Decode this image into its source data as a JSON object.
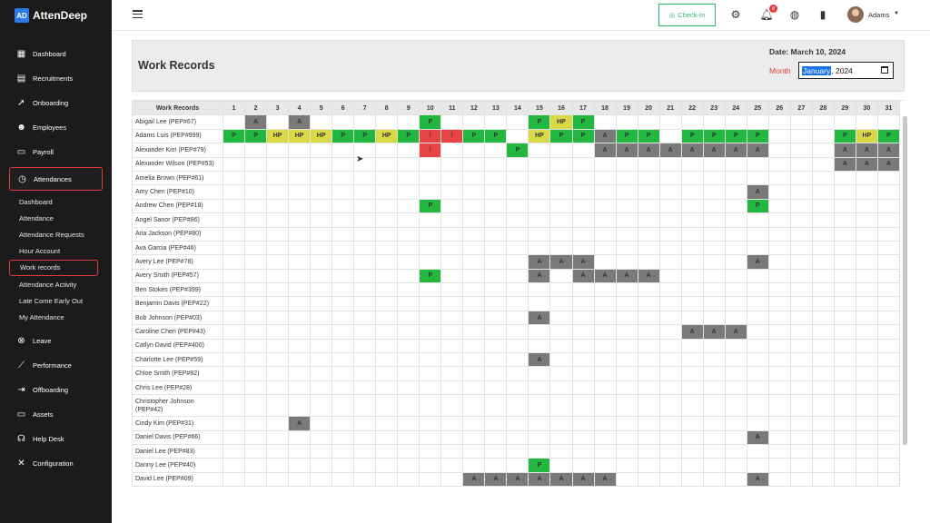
{
  "app": {
    "name": "AttenDeep",
    "logo": "AD"
  },
  "sidebar": {
    "items": [
      {
        "key": "dashboard",
        "label": "Dashboard",
        "icon": "▦"
      },
      {
        "key": "recruitments",
        "label": "Recruitments",
        "icon": "▤"
      },
      {
        "key": "onboarding",
        "label": "Onboarding",
        "icon": "➚"
      },
      {
        "key": "employees",
        "label": "Employees",
        "icon": "☻"
      },
      {
        "key": "payroll",
        "label": "Payroll",
        "icon": "▭"
      },
      {
        "key": "attendances",
        "label": "Attendances",
        "icon": "◷"
      },
      {
        "key": "leave",
        "label": "Leave",
        "icon": "⊗"
      },
      {
        "key": "performance",
        "label": "Performance",
        "icon": "⟋"
      },
      {
        "key": "offboarding",
        "label": "Offboarding",
        "icon": "⇥"
      },
      {
        "key": "assets",
        "label": "Assets",
        "icon": "▭"
      },
      {
        "key": "helpdesk",
        "label": "Help Desk",
        "icon": "☊"
      },
      {
        "key": "configuration",
        "label": "Configuration",
        "icon": "✕"
      }
    ],
    "attendance_sub": [
      "Dashboard",
      "Attendance",
      "Attendance Requests",
      "Hour Account",
      "Work records",
      "Attendance Activity",
      "Late Come Early Out",
      "My Attendance"
    ]
  },
  "topbar": {
    "checkin_label": "Check-In",
    "notification_count": "8",
    "user_name": "Adams"
  },
  "page": {
    "title": "Work Records",
    "date_label": "Date: March 10, 2024",
    "month_label": "Month",
    "month_value_selected": "January",
    "month_value_year": ", 2024"
  },
  "table": {
    "header_label": "Work Records",
    "days": 31,
    "rows": [
      {
        "name": "Abigail Lee (PEP#67)",
        "marks": {
          "2": "A",
          "4": "A",
          "10": "P",
          "15": "P",
          "16": "HP",
          "17": "P"
        }
      },
      {
        "name": "Adams Luis (PEP#999)",
        "marks": {
          "1": "P",
          "2": "P",
          "3": "HP",
          "4": "HP",
          "5": "HP",
          "6": "P",
          "7": "P",
          "8": "HP",
          "9": "P",
          "10": "!",
          "11": "!",
          "12": "P",
          "13": "P",
          "15": "HP",
          "16": "P",
          "17": "P",
          "18": "A",
          "19": "P",
          "20": "P",
          "22": "P",
          "23": "P",
          "24": "P",
          "25": "P",
          "29": "P",
          "30": "HP",
          "31": "P"
        }
      },
      {
        "name": "Alexander Kim (PEP#79)",
        "marks": {
          "10": "!",
          "14": "P",
          "18": "A",
          "19": "A",
          "20": "A",
          "21": "A",
          "22": "A",
          "23": "A",
          "24": "A",
          "25": "A",
          "29": "A",
          "30": "A",
          "31": "A"
        }
      },
      {
        "name": "Alexander Wilson (PEP#53)",
        "marks": {
          "29": "A",
          "30": "A",
          "31": "A"
        }
      },
      {
        "name": "Amelia Brown (PEP#61)",
        "marks": {}
      },
      {
        "name": "Amy Chen (PEP#10)",
        "marks": {
          "25": "A"
        }
      },
      {
        "name": "Andrew Chen (PEP#18)",
        "marks": {
          "10": "P",
          "25": "P"
        }
      },
      {
        "name": "Angel Sanor (PEP#86)",
        "marks": {}
      },
      {
        "name": "Aria Jackson (PEP#80)",
        "marks": {}
      },
      {
        "name": "Ava Garcia (PEP#46)",
        "marks": {}
      },
      {
        "name": "Avery Lee (PEP#78)",
        "marks": {
          "15": "A",
          "16": "A",
          "17": "A",
          "25": "A"
        }
      },
      {
        "name": "Avery Smith (PEP#57)",
        "marks": {
          "10": "P",
          "15": "A",
          "17": "A",
          "18": "A",
          "19": "A",
          "20": "A"
        }
      },
      {
        "name": "Ben Stokes (PEP#399)",
        "marks": {}
      },
      {
        "name": "Benjamin Davis (PEP#22)",
        "marks": {}
      },
      {
        "name": "Bob Johnson (PEP#03)",
        "marks": {
          "15": "A"
        }
      },
      {
        "name": "Caroline Chen (PEP#43)",
        "marks": {
          "22": "A",
          "23": "A",
          "24": "A"
        }
      },
      {
        "name": "Catlyn David (PEP#400)",
        "marks": {}
      },
      {
        "name": "Charlotte Lee (PEP#59)",
        "marks": {
          "15": "A"
        }
      },
      {
        "name": "Chloe Smith (PEP#82)",
        "marks": {}
      },
      {
        "name": "Chris Lee (PEP#28)",
        "marks": {}
      },
      {
        "name": "Christopher Johnson (PEP#42)",
        "marks": {},
        "tall": true
      },
      {
        "name": "Cindy Kim (PEP#31)",
        "marks": {
          "4": "A"
        }
      },
      {
        "name": "Daniel Davis (PEP#66)",
        "marks": {
          "25": "A"
        }
      },
      {
        "name": "Daniel Lee (PEP#83)",
        "marks": {}
      },
      {
        "name": "Danny Lee (PEP#40)",
        "marks": {
          "15": "P"
        }
      },
      {
        "name": "David Lee (PEP#09)",
        "marks": {
          "12": "A",
          "13": "A",
          "14": "A",
          "15": "A",
          "16": "A",
          "17": "A",
          "18": "A",
          "25": "A"
        }
      }
    ]
  },
  "colors": {
    "absent": "#7a7a7a",
    "present": "#22b83f",
    "half_present": "#d9d945",
    "alert": "#e84444",
    "active_outline": "#e03b3b"
  }
}
